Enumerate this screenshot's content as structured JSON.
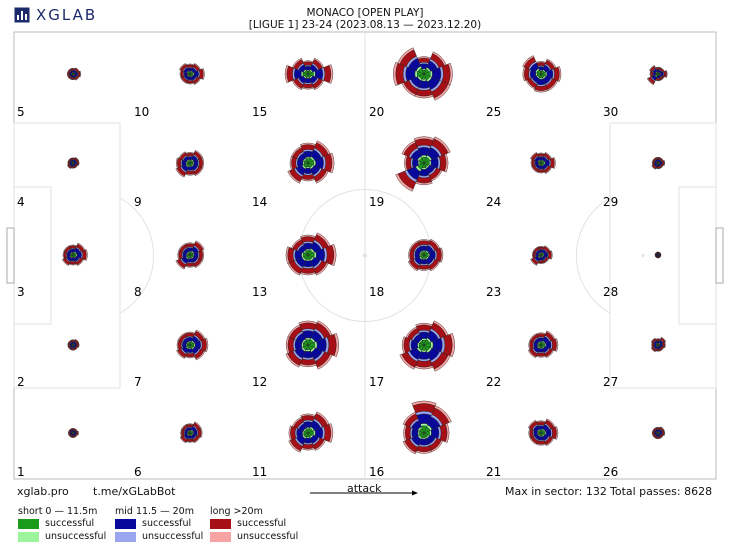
{
  "header": {
    "brand": "XGLAB",
    "title_line1": "MONACO [OPEN PLAY]",
    "title_line2": "[LIGUE 1] 23-24 (2023.08.13 — 2023.12.20)"
  },
  "footer": {
    "site": "xglab.pro",
    "telegram": "t.me/xGLabBot",
    "attack_label": "attack",
    "max_sector": "Max in sector: 132",
    "total_passes": "Total passes: 8628"
  },
  "legend": {
    "short": {
      "label": "short 0 — 11.5m",
      "successful": "successful",
      "unsuccessful": "unsuccessful",
      "color_s": "#1a9b1a",
      "color_u": "#9cf59c"
    },
    "mid": {
      "label": "mid 11.5 — 20m",
      "successful": "successful",
      "unsuccessful": "unsuccessful",
      "color_s": "#08089a",
      "color_u": "#9ca6f0"
    },
    "long": {
      "label": "long >20m",
      "successful": "successful",
      "unsuccessful": "unsuccessful",
      "color_s": "#a50f15",
      "color_u": "#f7a3a3"
    }
  },
  "chart_data": {
    "type": "polar-rose-grid",
    "sectors": 8,
    "max_in_sector": 132,
    "total_passes": 8628,
    "zone_numbers": [
      "1",
      "2",
      "3",
      "4",
      "5",
      "6",
      "7",
      "8",
      "9",
      "10",
      "11",
      "12",
      "13",
      "14",
      "15",
      "16",
      "17",
      "18",
      "19",
      "20",
      "21",
      "22",
      "23",
      "24",
      "25",
      "26",
      "27",
      "28",
      "29",
      "30"
    ],
    "zones": [
      {
        "zone": 5,
        "pattern": [
          1,
          2,
          3,
          2,
          1,
          1,
          1,
          1
        ],
        "size": 0.3
      },
      {
        "zone": 10,
        "pattern": [
          2,
          3,
          5,
          3,
          2,
          2,
          2,
          3
        ],
        "size": 0.55
      },
      {
        "zone": 15,
        "pattern": [
          2,
          4,
          8,
          4,
          3,
          4,
          7,
          4
        ],
        "size": 0.8
      },
      {
        "zone": 20,
        "pattern": [
          3,
          6,
          8,
          8,
          6,
          6,
          9,
          8
        ],
        "size": 0.95
      },
      {
        "zone": 25,
        "pattern": [
          2,
          4,
          6,
          5,
          5,
          4,
          5,
          6
        ],
        "size": 0.75
      },
      {
        "zone": 30,
        "pattern": [
          1,
          1,
          3,
          1,
          1,
          5,
          2,
          3
        ],
        "size": 0.4
      },
      {
        "zone": 4,
        "pattern": [
          1,
          2,
          2,
          1,
          1,
          2,
          1,
          1
        ],
        "size": 0.25
      },
      {
        "zone": 9,
        "pattern": [
          2,
          4,
          4,
          4,
          3,
          5,
          4,
          3
        ],
        "size": 0.6
      },
      {
        "zone": 14,
        "pattern": [
          5,
          7,
          8,
          6,
          4,
          6,
          4,
          4
        ],
        "size": 0.85
      },
      {
        "zone": 19,
        "pattern": [
          7,
          8,
          6,
          4,
          5,
          9,
          4,
          6
        ],
        "size": 0.95
      },
      {
        "zone": 24,
        "pattern": [
          2,
          3,
          5,
          3,
          2,
          2,
          2,
          3
        ],
        "size": 0.55
      },
      {
        "zone": 29,
        "pattern": [
          1,
          1,
          2,
          1,
          1,
          2,
          1,
          1
        ],
        "size": 0.3
      },
      {
        "zone": 3,
        "pattern": [
          2,
          4,
          5,
          3,
          2,
          3,
          2,
          2
        ],
        "size": 0.55
      },
      {
        "zone": 8,
        "pattern": [
          3,
          5,
          4,
          4,
          3,
          5,
          3,
          3
        ],
        "size": 0.6
      },
      {
        "zone": 13,
        "pattern": [
          5,
          7,
          9,
          6,
          5,
          6,
          6,
          4
        ],
        "size": 0.85
      },
      {
        "zone": 18,
        "pattern": [
          4,
          5,
          6,
          5,
          4,
          5,
          4,
          4
        ],
        "size": 0.7
      },
      {
        "zone": 23,
        "pattern": [
          2,
          3,
          4,
          2,
          2,
          4,
          2,
          2
        ],
        "size": 0.45
      },
      {
        "zone": 28,
        "pattern": [
          1,
          1,
          1,
          1,
          1,
          1,
          1,
          1
        ],
        "size": 0.05
      },
      {
        "zone": 2,
        "pattern": [
          1,
          2,
          2,
          1,
          1,
          1,
          1,
          1
        ],
        "size": 0.25
      },
      {
        "zone": 7,
        "pattern": [
          3,
          5,
          6,
          5,
          3,
          4,
          3,
          3
        ],
        "size": 0.65
      },
      {
        "zone": 12,
        "pattern": [
          6,
          7,
          9,
          7,
          5,
          6,
          5,
          5
        ],
        "size": 0.95
      },
      {
        "zone": 17,
        "pattern": [
          5,
          7,
          9,
          8,
          6,
          7,
          5,
          4
        ],
        "size": 0.95
      },
      {
        "zone": 22,
        "pattern": [
          3,
          5,
          6,
          4,
          3,
          4,
          3,
          3
        ],
        "size": 0.6
      },
      {
        "zone": 27,
        "pattern": [
          1,
          3,
          2,
          1,
          1,
          2,
          1,
          2
        ],
        "size": 0.35
      },
      {
        "zone": 1,
        "pattern": [
          1,
          1,
          2,
          1,
          1,
          1,
          1,
          1
        ],
        "size": 0.2
      },
      {
        "zone": 6,
        "pattern": [
          2,
          4,
          4,
          3,
          2,
          3,
          2,
          2
        ],
        "size": 0.5
      },
      {
        "zone": 11,
        "pattern": [
          5,
          7,
          8,
          5,
          4,
          6,
          5,
          4
        ],
        "size": 0.8
      },
      {
        "zone": 16,
        "pattern": [
          9,
          8,
          6,
          4,
          4,
          5,
          4,
          5
        ],
        "size": 1.0
      },
      {
        "zone": 21,
        "pattern": [
          3,
          5,
          6,
          4,
          3,
          3,
          3,
          4
        ],
        "size": 0.6
      },
      {
        "zone": 26,
        "pattern": [
          1,
          2,
          2,
          1,
          1,
          1,
          1,
          1
        ],
        "size": 0.3
      }
    ]
  }
}
